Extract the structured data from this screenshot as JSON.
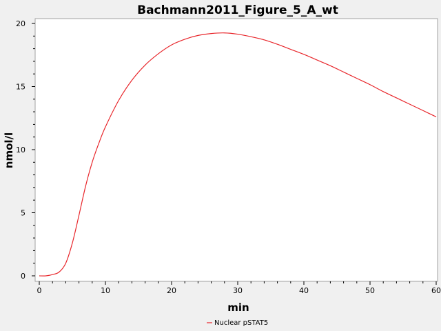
{
  "chart_data": {
    "type": "line",
    "title": "Bachmann2011_Figure_5_A_wt",
    "xlabel": "min",
    "ylabel": "nmol/l",
    "xlim": [
      0,
      60
    ],
    "ylim": [
      0,
      20
    ],
    "xticks": [
      "0",
      "10",
      "20",
      "30",
      "40",
      "50",
      "60"
    ],
    "yticks": [
      "0",
      "5",
      "10",
      "15",
      "20"
    ],
    "grid": false,
    "legend_position": "bottom-center",
    "series": [
      {
        "name": "Nuclear pSTAT5",
        "color": "#e8262b",
        "x": [
          0,
          1,
          2,
          3,
          4,
          5,
          6,
          7,
          8,
          9,
          10,
          12,
          14,
          16,
          18,
          20,
          22,
          24,
          26,
          28,
          30,
          32,
          34,
          36,
          38,
          40,
          42,
          44,
          46,
          48,
          50,
          52,
          54,
          56,
          58,
          60
        ],
        "y": [
          0.0,
          0.0,
          0.1,
          0.3,
          1.0,
          2.6,
          4.8,
          7.1,
          9.0,
          10.5,
          11.8,
          13.9,
          15.5,
          16.7,
          17.6,
          18.3,
          18.75,
          19.05,
          19.2,
          19.25,
          19.15,
          18.95,
          18.7,
          18.35,
          17.95,
          17.55,
          17.1,
          16.65,
          16.15,
          15.65,
          15.15,
          14.6,
          14.1,
          13.6,
          13.1,
          12.6
        ]
      }
    ]
  }
}
